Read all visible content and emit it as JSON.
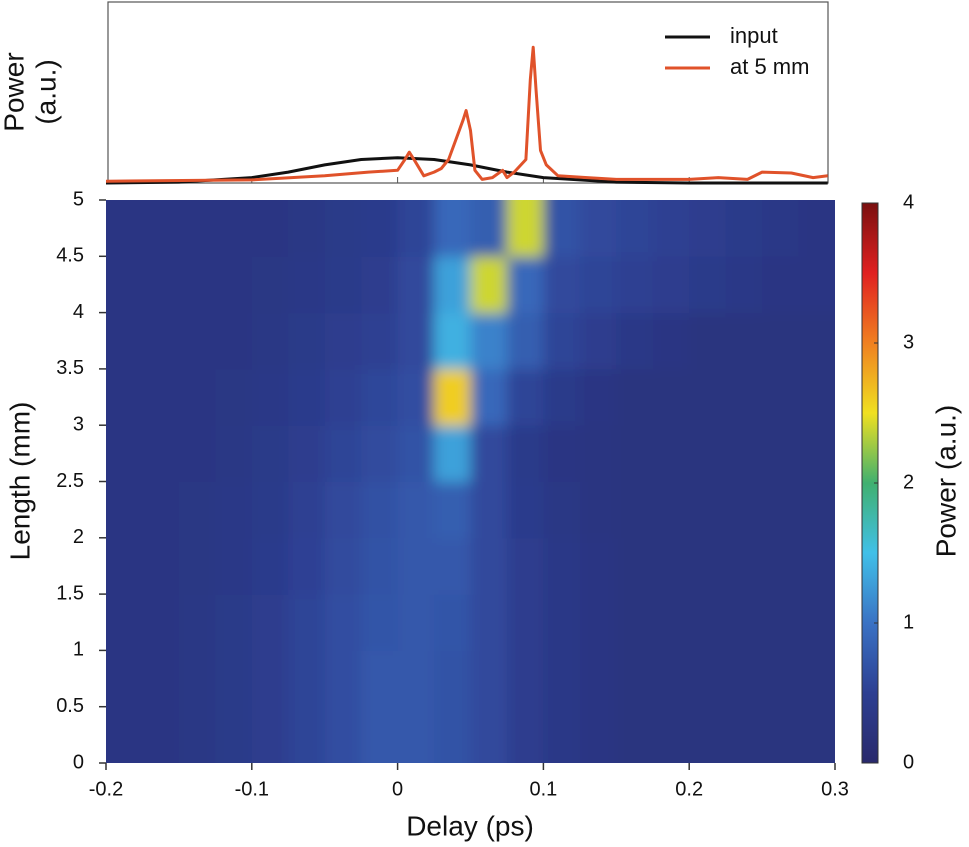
{
  "chart_data": [
    {
      "type": "line",
      "ylabel": [
        "Power",
        "(a.u.)"
      ],
      "xlim": [
        -0.2,
        0.3
      ],
      "ylim": [
        0,
        1
      ],
      "legend": "upper right",
      "series": [
        {
          "name": "input",
          "color": "#111111",
          "x": [
            -0.2,
            -0.15,
            -0.1,
            -0.075,
            -0.05,
            -0.025,
            0,
            0.025,
            0.05,
            0.075,
            0.1,
            0.15,
            0.2,
            0.295
          ],
          "values": [
            0.0,
            0.005,
            0.03,
            0.06,
            0.1,
            0.13,
            0.14,
            0.13,
            0.1,
            0.06,
            0.03,
            0.005,
            0.0,
            0.0
          ]
        },
        {
          "name": "at 5 mm",
          "color": "#e0522a",
          "x": [
            -0.2,
            -0.1,
            -0.05,
            -0.02,
            0,
            0.005,
            0.008,
            0.012,
            0.018,
            0.025,
            0.03,
            0.035,
            0.04,
            0.045,
            0.047,
            0.05,
            0.053,
            0.058,
            0.065,
            0.072,
            0.075,
            0.08,
            0.088,
            0.091,
            0.093,
            0.095,
            0.098,
            0.102,
            0.11,
            0.13,
            0.15,
            0.2,
            0.22,
            0.24,
            0.25,
            0.27,
            0.285,
            0.295
          ],
          "values": [
            0.01,
            0.017,
            0.04,
            0.06,
            0.07,
            0.13,
            0.17,
            0.12,
            0.04,
            0.06,
            0.08,
            0.13,
            0.24,
            0.35,
            0.4,
            0.29,
            0.07,
            0.02,
            0.03,
            0.07,
            0.03,
            0.06,
            0.13,
            0.57,
            0.75,
            0.51,
            0.18,
            0.1,
            0.04,
            0.03,
            0.02,
            0.02,
            0.03,
            0.02,
            0.06,
            0.055,
            0.03,
            0.04
          ]
        }
      ]
    },
    {
      "type": "heatmap",
      "xlabel": "Delay (ps)",
      "ylabel": "Length (mm)",
      "colorbar_label": "Power (a.u.)",
      "xlim": [
        -0.2,
        0.3
      ],
      "ylim": [
        0,
        5
      ],
      "xticks": [
        -0.2,
        -0.1,
        0,
        0.1,
        0.2,
        0.3
      ],
      "yticks": [
        0,
        0.5,
        1,
        1.5,
        2,
        2.5,
        3,
        3.5,
        4,
        4.5,
        5
      ],
      "clim": [
        0,
        4
      ],
      "cticks": [
        0,
        1,
        2,
        3,
        4
      ],
      "colormap": [
        "#29296c",
        "#2d3f92",
        "#3a72c4",
        "#40c0e8",
        "#40b070",
        "#f0e020",
        "#f08020",
        "#e02020",
        "#7a1010"
      ],
      "xbins": [
        -0.2,
        -0.175,
        -0.15,
        -0.125,
        -0.1,
        -0.075,
        -0.05,
        -0.025,
        0,
        0.025,
        0.05,
        0.075,
        0.1,
        0.125,
        0.15,
        0.175,
        0.2,
        0.225,
        0.25,
        0.275,
        0.3
      ],
      "ybins": [
        0,
        0.5,
        1,
        1.5,
        2,
        2.5,
        3,
        3.5,
        4,
        4.5,
        5
      ],
      "z": [
        [
          0.3,
          0.3,
          0.33,
          0.38,
          0.45,
          0.55,
          0.65,
          0.75,
          0.75,
          0.7,
          0.6,
          0.45,
          0.35,
          0.3,
          0.25,
          0.25,
          0.25,
          0.25,
          0.25,
          0.25
        ],
        [
          0.3,
          0.3,
          0.33,
          0.38,
          0.45,
          0.55,
          0.65,
          0.75,
          0.75,
          0.7,
          0.6,
          0.45,
          0.35,
          0.3,
          0.25,
          0.25,
          0.25,
          0.25,
          0.25,
          0.25
        ],
        [
          0.3,
          0.3,
          0.33,
          0.38,
          0.45,
          0.55,
          0.65,
          0.72,
          0.75,
          0.72,
          0.6,
          0.45,
          0.35,
          0.3,
          0.25,
          0.25,
          0.25,
          0.25,
          0.25,
          0.25
        ],
        [
          0.3,
          0.3,
          0.32,
          0.36,
          0.42,
          0.52,
          0.62,
          0.7,
          0.75,
          0.75,
          0.6,
          0.45,
          0.35,
          0.3,
          0.25,
          0.25,
          0.25,
          0.25,
          0.25,
          0.25
        ],
        [
          0.3,
          0.3,
          0.32,
          0.35,
          0.4,
          0.5,
          0.6,
          0.68,
          0.75,
          0.8,
          0.6,
          0.42,
          0.33,
          0.28,
          0.25,
          0.25,
          0.25,
          0.25,
          0.25,
          0.25
        ],
        [
          0.3,
          0.3,
          0.3,
          0.33,
          0.38,
          0.45,
          0.55,
          0.62,
          0.7,
          1.3,
          0.6,
          0.4,
          0.3,
          0.28,
          0.25,
          0.25,
          0.25,
          0.25,
          0.25,
          0.25
        ],
        [
          0.3,
          0.3,
          0.3,
          0.32,
          0.35,
          0.42,
          0.5,
          0.58,
          0.65,
          2.6,
          0.9,
          0.55,
          0.4,
          0.3,
          0.25,
          0.25,
          0.25,
          0.25,
          0.25,
          0.25
        ],
        [
          0.3,
          0.3,
          0.3,
          0.3,
          0.33,
          0.38,
          0.45,
          0.5,
          0.6,
          1.4,
          1.1,
          0.8,
          0.55,
          0.45,
          0.35,
          0.3,
          0.25,
          0.25,
          0.25,
          0.25
        ],
        [
          0.3,
          0.3,
          0.3,
          0.3,
          0.32,
          0.35,
          0.4,
          0.45,
          0.6,
          1.3,
          2.4,
          0.9,
          0.6,
          0.55,
          0.5,
          0.45,
          0.4,
          0.35,
          0.3,
          0.3
        ],
        [
          0.3,
          0.3,
          0.3,
          0.3,
          0.3,
          0.33,
          0.38,
          0.42,
          0.55,
          0.9,
          0.8,
          2.4,
          0.7,
          0.6,
          0.55,
          0.5,
          0.45,
          0.4,
          0.35,
          0.3
        ]
      ]
    }
  ]
}
